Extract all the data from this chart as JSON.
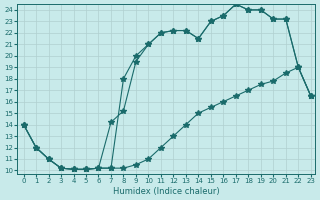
{
  "xlabel": "Humidex (Indice chaleur)",
  "ylabel": "",
  "bg_color": "#c8eaea",
  "grid_color": "#b0d0d0",
  "line_color": "#1a6b6b",
  "xlim": [
    -0.5,
    23.3
  ],
  "ylim": [
    9.7,
    24.5
  ],
  "xticks": [
    0,
    1,
    2,
    3,
    4,
    5,
    6,
    7,
    8,
    9,
    10,
    11,
    12,
    13,
    14,
    15,
    16,
    17,
    18,
    19,
    20,
    21,
    22,
    23
  ],
  "yticks": [
    10,
    11,
    12,
    13,
    14,
    15,
    16,
    17,
    18,
    19,
    20,
    21,
    22,
    23,
    24
  ],
  "line1": {
    "x": [
      0,
      1,
      2,
      3,
      4,
      5,
      6,
      7,
      8,
      9,
      10,
      11,
      12,
      13,
      14,
      15,
      16,
      17,
      18,
      19,
      20,
      21,
      22,
      23
    ],
    "y": [
      14,
      12,
      11,
      10.2,
      10.1,
      10.1,
      10.2,
      10.2,
      18,
      20,
      21,
      22,
      22.2,
      22.2,
      21.5,
      23,
      23.5,
      24.5,
      24,
      24,
      23.2,
      23.2,
      19,
      16.5
    ]
  },
  "line2": {
    "x": [
      0,
      1,
      2,
      3,
      4,
      5,
      6,
      7,
      8,
      9,
      10,
      11,
      12,
      13,
      14,
      15,
      16,
      17,
      18,
      19,
      20,
      21,
      22,
      23
    ],
    "y": [
      14,
      12,
      11,
      10.2,
      10.1,
      10.1,
      10.2,
      14.2,
      15.2,
      19.5,
      21,
      22,
      22.2,
      22.2,
      21.5,
      23,
      23.5,
      24.5,
      24,
      24,
      23.2,
      23.2,
      19,
      16.5
    ]
  },
  "line3": {
    "x": [
      0,
      1,
      2,
      3,
      4,
      5,
      6,
      7,
      8,
      9,
      10,
      11,
      12,
      13,
      14,
      15,
      16,
      17,
      18,
      19,
      20,
      21,
      22,
      23
    ],
    "y": [
      14,
      12,
      11,
      10.2,
      10.1,
      10.1,
      10.2,
      10.2,
      10.2,
      10.5,
      11,
      12,
      13,
      14,
      15,
      15.5,
      16,
      16.5,
      17,
      17.5,
      17.8,
      18.5,
      19,
      16.5
    ]
  }
}
